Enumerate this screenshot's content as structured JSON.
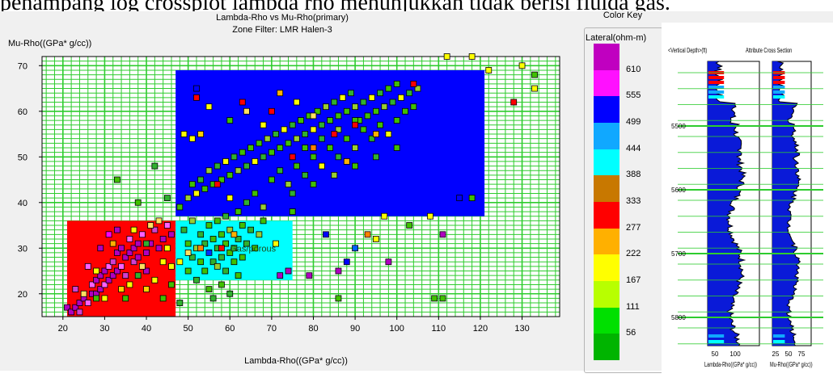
{
  "caption": "penampang log crossplot lambda rho menunjukkan tidak berisi fluida gas.",
  "chart_data": {
    "type": "scatter",
    "title": "Lambda-Rho vs Mu-Rho(primary)",
    "subtitle": "Zone Filter: LMR Halen-3",
    "xlabel": "Lambda-Rho((GPa* g/cc))",
    "ylabel": "Mu-Rho((GPa* g/cc))",
    "xlim": [
      15,
      139
    ],
    "ylim": [
      15,
      72
    ],
    "xticks": [
      20,
      30,
      40,
      50,
      60,
      70,
      80,
      90,
      100,
      110,
      120,
      130
    ],
    "yticks": [
      20,
      30,
      40,
      50,
      60,
      70
    ],
    "grid": true,
    "annotation": "Gas/porous",
    "zones": [
      {
        "name": "zone-red",
        "x": [
          21,
          47
        ],
        "y": [
          15,
          36
        ],
        "color": "#ff0000"
      },
      {
        "name": "zone-cyan",
        "x": [
          47,
          75
        ],
        "y": [
          23,
          36
        ],
        "color": "#00ffff"
      },
      {
        "name": "zone-blue",
        "x": [
          47,
          121
        ],
        "y": [
          37,
          69
        ],
        "color": "#0000ff"
      }
    ],
    "points": [
      [
        21,
        17,
        "#b000c0"
      ],
      [
        22,
        16,
        "#b000c0"
      ],
      [
        23,
        17,
        "#b000c0"
      ],
      [
        24,
        16,
        "#d040d0"
      ],
      [
        24,
        18,
        "#b000c0"
      ],
      [
        25,
        19,
        "#b000c0"
      ],
      [
        26,
        18,
        "#ff60ff"
      ],
      [
        27,
        20,
        "#b000c0"
      ],
      [
        27,
        22,
        "#ff60ff"
      ],
      [
        28,
        20,
        "#b000c0"
      ],
      [
        28,
        23,
        "#b000c0"
      ],
      [
        29,
        24,
        "#b000c0"
      ],
      [
        29,
        21,
        "#b000c0"
      ],
      [
        30,
        22,
        "#ff60ff"
      ],
      [
        30,
        25,
        "#b000c0"
      ],
      [
        31,
        23,
        "#b000c0"
      ],
      [
        31,
        26,
        "#ff60ff"
      ],
      [
        32,
        24,
        "#b000c0"
      ],
      [
        32,
        27,
        "#d040d0"
      ],
      [
        33,
        25,
        "#b000c0"
      ],
      [
        33,
        29,
        "#b000c0"
      ],
      [
        34,
        26,
        "#ff60ff"
      ],
      [
        34,
        30,
        "#b000c0"
      ],
      [
        35,
        28,
        "#b000c0"
      ],
      [
        35,
        24,
        "#d040d0"
      ],
      [
        36,
        29,
        "#b000c0"
      ],
      [
        36,
        32,
        "#ff60ff"
      ],
      [
        37,
        30,
        "#b000c0"
      ],
      [
        37,
        27,
        "#d040d0"
      ],
      [
        38,
        31,
        "#b000c0"
      ],
      [
        38,
        28,
        "#b000c0"
      ],
      [
        39,
        33,
        "#ff60ff"
      ],
      [
        40,
        29,
        "#b000c0"
      ],
      [
        40,
        25,
        "#b000c0"
      ],
      [
        41,
        31,
        "#b000c0"
      ],
      [
        42,
        34,
        "#d040d0"
      ],
      [
        43,
        30,
        "#b000c0"
      ],
      [
        44,
        32,
        "#b000c0"
      ],
      [
        45,
        35,
        "#ff60ff"
      ],
      [
        46,
        33,
        "#b000c0"
      ],
      [
        29,
        30,
        "#b000c0"
      ],
      [
        31,
        33,
        "#ff00ff"
      ],
      [
        33,
        34,
        "#b000c0"
      ],
      [
        26,
        26,
        "#ff60ff"
      ],
      [
        23,
        21,
        "#d040d0"
      ],
      [
        36,
        22,
        "#ffff00"
      ],
      [
        39,
        26,
        "#ffe060"
      ],
      [
        42,
        23,
        "#ffff00"
      ],
      [
        44,
        27,
        "#ffff00"
      ],
      [
        25,
        20,
        "#ffe060"
      ],
      [
        30,
        19,
        "#ffff00"
      ],
      [
        34,
        21,
        "#ffd000"
      ],
      [
        37,
        34,
        "#ffff00"
      ],
      [
        41,
        35,
        "#ffe060"
      ],
      [
        45,
        30,
        "#ffff00"
      ],
      [
        32,
        31,
        "#ffb000"
      ],
      [
        28,
        25,
        "#ffff00"
      ],
      [
        40,
        21,
        "#ffd000"
      ],
      [
        46,
        26,
        "#ffff00"
      ],
      [
        43,
        36,
        "#ffe060"
      ],
      [
        28,
        19,
        "#40c000"
      ],
      [
        35,
        19,
        "#40c000"
      ],
      [
        38,
        24,
        "#30b030"
      ],
      [
        44,
        19,
        "#40c000"
      ],
      [
        40,
        31,
        "#30b030"
      ],
      [
        46,
        22,
        "#40c000"
      ],
      [
        33,
        45,
        "#40c000"
      ],
      [
        42,
        48,
        "#30b030"
      ],
      [
        38,
        40,
        "#40c000"
      ],
      [
        45,
        41,
        "#30b030"
      ],
      [
        48,
        18,
        "#30b030"
      ],
      [
        50,
        25,
        "#40c000"
      ],
      [
        51,
        28,
        "#30b030"
      ],
      [
        52,
        30,
        "#9acd32"
      ],
      [
        53,
        27,
        "#40c000"
      ],
      [
        53,
        33,
        "#30b030"
      ],
      [
        54,
        25,
        "#40c000"
      ],
      [
        54,
        31,
        "#30b030"
      ],
      [
        55,
        29,
        "#0030ff"
      ],
      [
        55,
        35,
        "#40c000"
      ],
      [
        56,
        27,
        "#30b030"
      ],
      [
        56,
        32,
        "#40c000"
      ],
      [
        57,
        30,
        "#30b030"
      ],
      [
        57,
        26,
        "#9acd32"
      ],
      [
        58,
        33,
        "#40c000"
      ],
      [
        58,
        28,
        "#30b030"
      ],
      [
        59,
        31,
        "#40c000"
      ],
      [
        59,
        25,
        "#30b030"
      ],
      [
        60,
        29,
        "#40c000"
      ],
      [
        60,
        34,
        "#9acd32"
      ],
      [
        61,
        30,
        "#30b030"
      ],
      [
        61,
        27,
        "#40c000"
      ],
      [
        62,
        32,
        "#30b030"
      ],
      [
        63,
        28,
        "#40c000"
      ],
      [
        64,
        31,
        "#30b030"
      ],
      [
        55,
        21,
        "#40c000"
      ],
      [
        56,
        19,
        "#30b030"
      ],
      [
        58,
        22,
        "#40c000"
      ],
      [
        60,
        20,
        "#30b030"
      ],
      [
        62,
        24,
        "#40c000"
      ],
      [
        52,
        23,
        "#30b030"
      ],
      [
        50,
        31,
        "#40c000"
      ],
      [
        49,
        34,
        "#30b030"
      ],
      [
        51,
        36,
        "#9acd32"
      ],
      [
        57,
        36,
        "#40c000"
      ],
      [
        59,
        37,
        "#30b030"
      ],
      [
        63,
        35,
        "#40c000"
      ],
      [
        65,
        34,
        "#30b030"
      ],
      [
        66,
        30,
        "#40c000"
      ],
      [
        67,
        33,
        "#9acd32"
      ],
      [
        48,
        27,
        "#ffff00"
      ],
      [
        50,
        29,
        "#ffe060"
      ],
      [
        53,
        30,
        "#ff8000"
      ],
      [
        58,
        30,
        "#ff0000"
      ],
      [
        61,
        33,
        "#ffb000"
      ],
      [
        48,
        39,
        "#40c000"
      ],
      [
        50,
        41,
        "#9acd32"
      ],
      [
        51,
        44,
        "#40c000"
      ],
      [
        52,
        42,
        "#ffff00"
      ],
      [
        53,
        45,
        "#30b030"
      ],
      [
        54,
        43,
        "#40c000"
      ],
      [
        55,
        47,
        "#9acd32"
      ],
      [
        56,
        44,
        "#40c000"
      ],
      [
        57,
        48,
        "#30b030"
      ],
      [
        58,
        45,
        "#40c000"
      ],
      [
        59,
        49,
        "#ffff00"
      ],
      [
        60,
        46,
        "#40c000"
      ],
      [
        61,
        50,
        "#30b030"
      ],
      [
        62,
        47,
        "#9acd32"
      ],
      [
        63,
        51,
        "#40c000"
      ],
      [
        64,
        48,
        "#30b030"
      ],
      [
        65,
        52,
        "#40c000"
      ],
      [
        66,
        49,
        "#ffff00"
      ],
      [
        67,
        53,
        "#40c000"
      ],
      [
        68,
        50,
        "#30b030"
      ],
      [
        69,
        54,
        "#9acd32"
      ],
      [
        70,
        51,
        "#40c000"
      ],
      [
        71,
        55,
        "#30b030"
      ],
      [
        72,
        52,
        "#40c000"
      ],
      [
        73,
        56,
        "#ffff00"
      ],
      [
        74,
        53,
        "#40c000"
      ],
      [
        75,
        57,
        "#30b030"
      ],
      [
        76,
        54,
        "#9acd32"
      ],
      [
        77,
        58,
        "#40c000"
      ],
      [
        78,
        55,
        "#30b030"
      ],
      [
        79,
        59,
        "#40c000"
      ],
      [
        80,
        56,
        "#ffff00"
      ],
      [
        81,
        60,
        "#40c000"
      ],
      [
        82,
        57,
        "#30b030"
      ],
      [
        83,
        61,
        "#9acd32"
      ],
      [
        84,
        58,
        "#40c000"
      ],
      [
        85,
        62,
        "#30b030"
      ],
      [
        86,
        59,
        "#40c000"
      ],
      [
        87,
        63,
        "#ffff00"
      ],
      [
        88,
        60,
        "#40c000"
      ],
      [
        89,
        64,
        "#30b030"
      ],
      [
        90,
        61,
        "#9acd32"
      ],
      [
        91,
        58,
        "#40c000"
      ],
      [
        92,
        62,
        "#30b030"
      ],
      [
        93,
        59,
        "#40c000"
      ],
      [
        94,
        63,
        "#ffff00"
      ],
      [
        95,
        60,
        "#40c000"
      ],
      [
        96,
        64,
        "#30b030"
      ],
      [
        97,
        61,
        "#9acd32"
      ],
      [
        98,
        65,
        "#40c000"
      ],
      [
        99,
        62,
        "#30b030"
      ],
      [
        100,
        66,
        "#40c000"
      ],
      [
        101,
        63,
        "#ffff00"
      ],
      [
        102,
        60,
        "#40c000"
      ],
      [
        103,
        64,
        "#30b030"
      ],
      [
        104,
        61,
        "#40c000"
      ],
      [
        105,
        65,
        "#9acd32"
      ],
      [
        70,
        45,
        "#40c000"
      ],
      [
        72,
        47,
        "#30b030"
      ],
      [
        74,
        44,
        "#9acd32"
      ],
      [
        76,
        48,
        "#40c000"
      ],
      [
        78,
        46,
        "#30b030"
      ],
      [
        80,
        50,
        "#40c000"
      ],
      [
        82,
        48,
        "#ffff00"
      ],
      [
        84,
        52,
        "#40c000"
      ],
      [
        86,
        50,
        "#30b030"
      ],
      [
        88,
        54,
        "#40c000"
      ],
      [
        90,
        52,
        "#9acd32"
      ],
      [
        92,
        56,
        "#40c000"
      ],
      [
        94,
        54,
        "#30b030"
      ],
      [
        96,
        57,
        "#40c000"
      ],
      [
        98,
        55,
        "#ffff00"
      ],
      [
        100,
        58,
        "#40c000"
      ],
      [
        75,
        42,
        "#30b030"
      ],
      [
        80,
        44,
        "#40c000"
      ],
      [
        85,
        46,
        "#9acd32"
      ],
      [
        90,
        48,
        "#40c000"
      ],
      [
        95,
        50,
        "#30b030"
      ],
      [
        100,
        52,
        "#40c000"
      ],
      [
        78,
        52,
        "#40c000"
      ],
      [
        82,
        54,
        "#30b030"
      ],
      [
        86,
        56,
        "#9acd32"
      ],
      [
        90,
        58,
        "#40c000"
      ],
      [
        66,
        42,
        "#40c000"
      ],
      [
        68,
        39,
        "#9acd32"
      ],
      [
        64,
        40,
        "#30b030"
      ],
      [
        62,
        38,
        "#40c000"
      ],
      [
        60,
        41,
        "#ffff00"
      ],
      [
        85,
        55,
        "#ff0000"
      ],
      [
        90,
        57,
        "#ff0000"
      ],
      [
        70,
        60,
        "#ff0000"
      ],
      [
        63,
        62,
        "#ff0000"
      ],
      [
        57,
        44,
        "#ff0000"
      ],
      [
        104,
        66,
        "#ff0000"
      ],
      [
        80,
        52,
        "#ff8000"
      ],
      [
        88,
        49,
        "#ffb000"
      ],
      [
        75,
        50,
        "#ff0000"
      ],
      [
        95,
        55,
        "#ffb000"
      ],
      [
        52,
        65,
        "#0000ff"
      ],
      [
        52,
        63,
        "#ff0000"
      ],
      [
        55,
        61,
        "#ffff00"
      ],
      [
        60,
        58,
        "#40c000"
      ],
      [
        64,
        60,
        "#ffe060"
      ],
      [
        68,
        57,
        "#ffff00"
      ],
      [
        72,
        64,
        "#ffb000"
      ],
      [
        76,
        62,
        "#ffff00"
      ],
      [
        80,
        59,
        "#ffe060"
      ],
      [
        49,
        55,
        "#ffff00"
      ],
      [
        51,
        54,
        "#ffff00"
      ],
      [
        53,
        55,
        "#ffd000"
      ],
      [
        112,
        72,
        "#ffff00"
      ],
      [
        118,
        72,
        "#ffff00"
      ],
      [
        122,
        69,
        "#ffff00"
      ],
      [
        130,
        70,
        "#ffff00"
      ],
      [
        133,
        68,
        "#40c000"
      ],
      [
        133,
        65,
        "#ffff00"
      ],
      [
        128,
        62,
        "#ff0000"
      ],
      [
        115,
        41,
        "#0000ff"
      ],
      [
        118,
        41,
        "#40c000"
      ],
      [
        108,
        37,
        "#ffff00"
      ],
      [
        111,
        33,
        "#b000c0"
      ],
      [
        103,
        35,
        "#40c000"
      ],
      [
        97,
        37,
        "#ffff00"
      ],
      [
        93,
        33,
        "#ff8000"
      ],
      [
        90,
        30,
        "#0060ff"
      ],
      [
        88,
        27,
        "#0000ff"
      ],
      [
        86,
        25,
        "#b000c0"
      ],
      [
        98,
        27,
        "#b000c0"
      ],
      [
        79,
        24,
        "#b000c0"
      ],
      [
        72,
        24,
        "#b000c0"
      ],
      [
        74,
        25,
        "#b000c0"
      ],
      [
        86,
        19,
        "#40c000"
      ],
      [
        109,
        19,
        "#40c000"
      ],
      [
        111,
        19,
        "#40c000"
      ],
      [
        71,
        31,
        "#ffff00"
      ],
      [
        68,
        36,
        "#40c000"
      ],
      [
        75,
        38,
        "#40c000"
      ],
      [
        95,
        32,
        "#ffff00"
      ],
      [
        83,
        33,
        "#0000ff"
      ]
    ]
  },
  "color_key": {
    "title": "Color Key",
    "attribute": "Lateral(ohm-m)",
    "labels": [
      "610",
      "555",
      "499",
      "444",
      "388",
      "333",
      "277",
      "222",
      "167",
      "111",
      "56"
    ],
    "colors": [
      "#c000c0",
      "#ff10ff",
      "#0000ff",
      "#10a8ff",
      "#00ffff",
      "#c87800",
      "#ff0000",
      "#ffb000",
      "#ffff00",
      "#b8ff00",
      "#00e000",
      "#00b400"
    ]
  },
  "well_panel": {
    "depth_label": "<Vertical Depth>(ft)",
    "section_label": "Attribute Cross Section",
    "depth_ticks": [
      "5500",
      "5600",
      "5700",
      "5800"
    ],
    "track1": {
      "label": "Lambda-Rho((GPa* g/cc))",
      "ticks": [
        "50",
        "100"
      ]
    },
    "track2": {
      "label": "Mu-Rho((GPa* g/cc))",
      "ticks": [
        "25",
        "50",
        "75"
      ]
    }
  }
}
